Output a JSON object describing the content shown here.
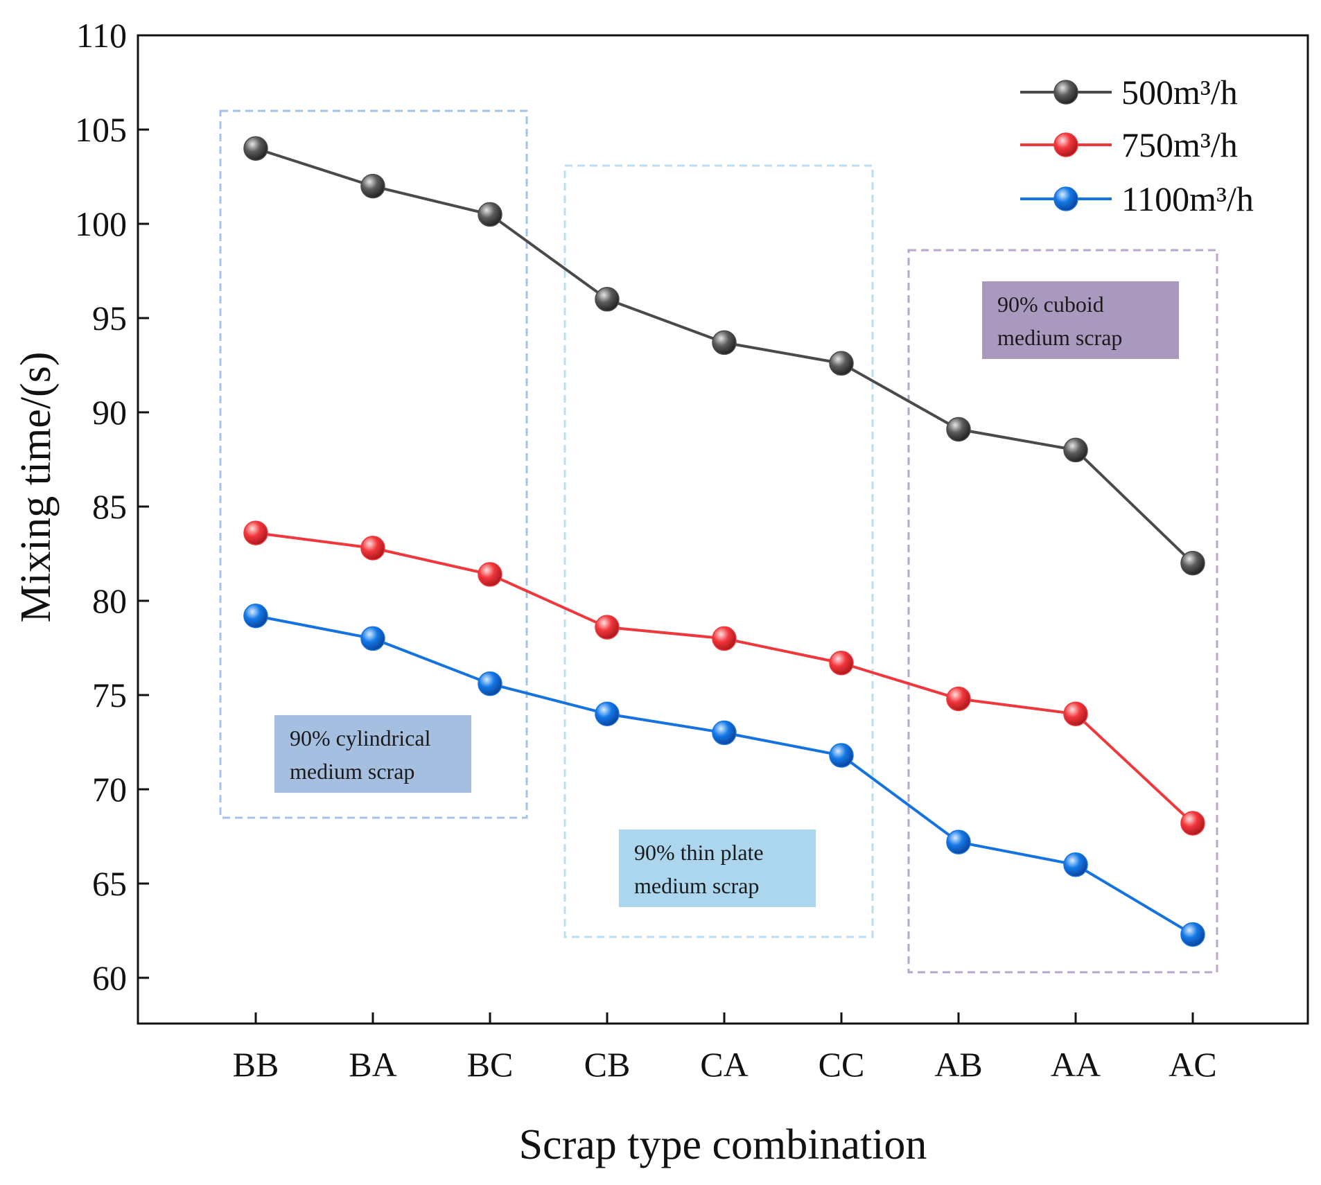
{
  "chart_data": {
    "type": "line",
    "title": "",
    "xlabel": "Scrap type combination",
    "ylabel": "Mixing time/(s)",
    "categories": [
      "BB",
      "BA",
      "BC",
      "CB",
      "CA",
      "CC",
      "AB",
      "AA",
      "AC"
    ],
    "ylim": [
      60,
      110
    ],
    "yticks": [
      60,
      65,
      70,
      75,
      80,
      85,
      90,
      95,
      100,
      105,
      110
    ],
    "grid": false,
    "legend_position": "top-right",
    "series": [
      {
        "name": "500m³/h",
        "color": "#4a4a4a",
        "values": [
          104.0,
          102.0,
          100.5,
          96.0,
          93.7,
          92.6,
          89.1,
          88.0,
          82.0
        ]
      },
      {
        "name": "750m³/h",
        "color": "#f0373c",
        "values": [
          83.6,
          82.8,
          81.4,
          78.6,
          78.0,
          76.7,
          74.8,
          74.0,
          68.2
        ]
      },
      {
        "name": "1100m³/h",
        "color": "#1473e0",
        "values": [
          79.2,
          78.0,
          75.6,
          74.0,
          73.0,
          71.8,
          67.2,
          66.0,
          62.3
        ]
      }
    ],
    "annotations": [
      {
        "label_lines": [
          "90% cylindrical",
          "medium scrap"
        ],
        "fill": "#a5bfe0",
        "border": "#a5c3ea",
        "group": [
          "BB",
          "BA",
          "BC"
        ]
      },
      {
        "label_lines": [
          "90% thin plate",
          "medium scrap"
        ],
        "fill": "#abd6ee",
        "border": "#b9def3",
        "group": [
          "CB",
          "CA",
          "CC"
        ]
      },
      {
        "label_lines": [
          "90% cuboid",
          "medium scrap"
        ],
        "fill": "#a999bf",
        "border": "#b8a6d0",
        "group": [
          "AB",
          "AA",
          "AC"
        ]
      }
    ]
  }
}
